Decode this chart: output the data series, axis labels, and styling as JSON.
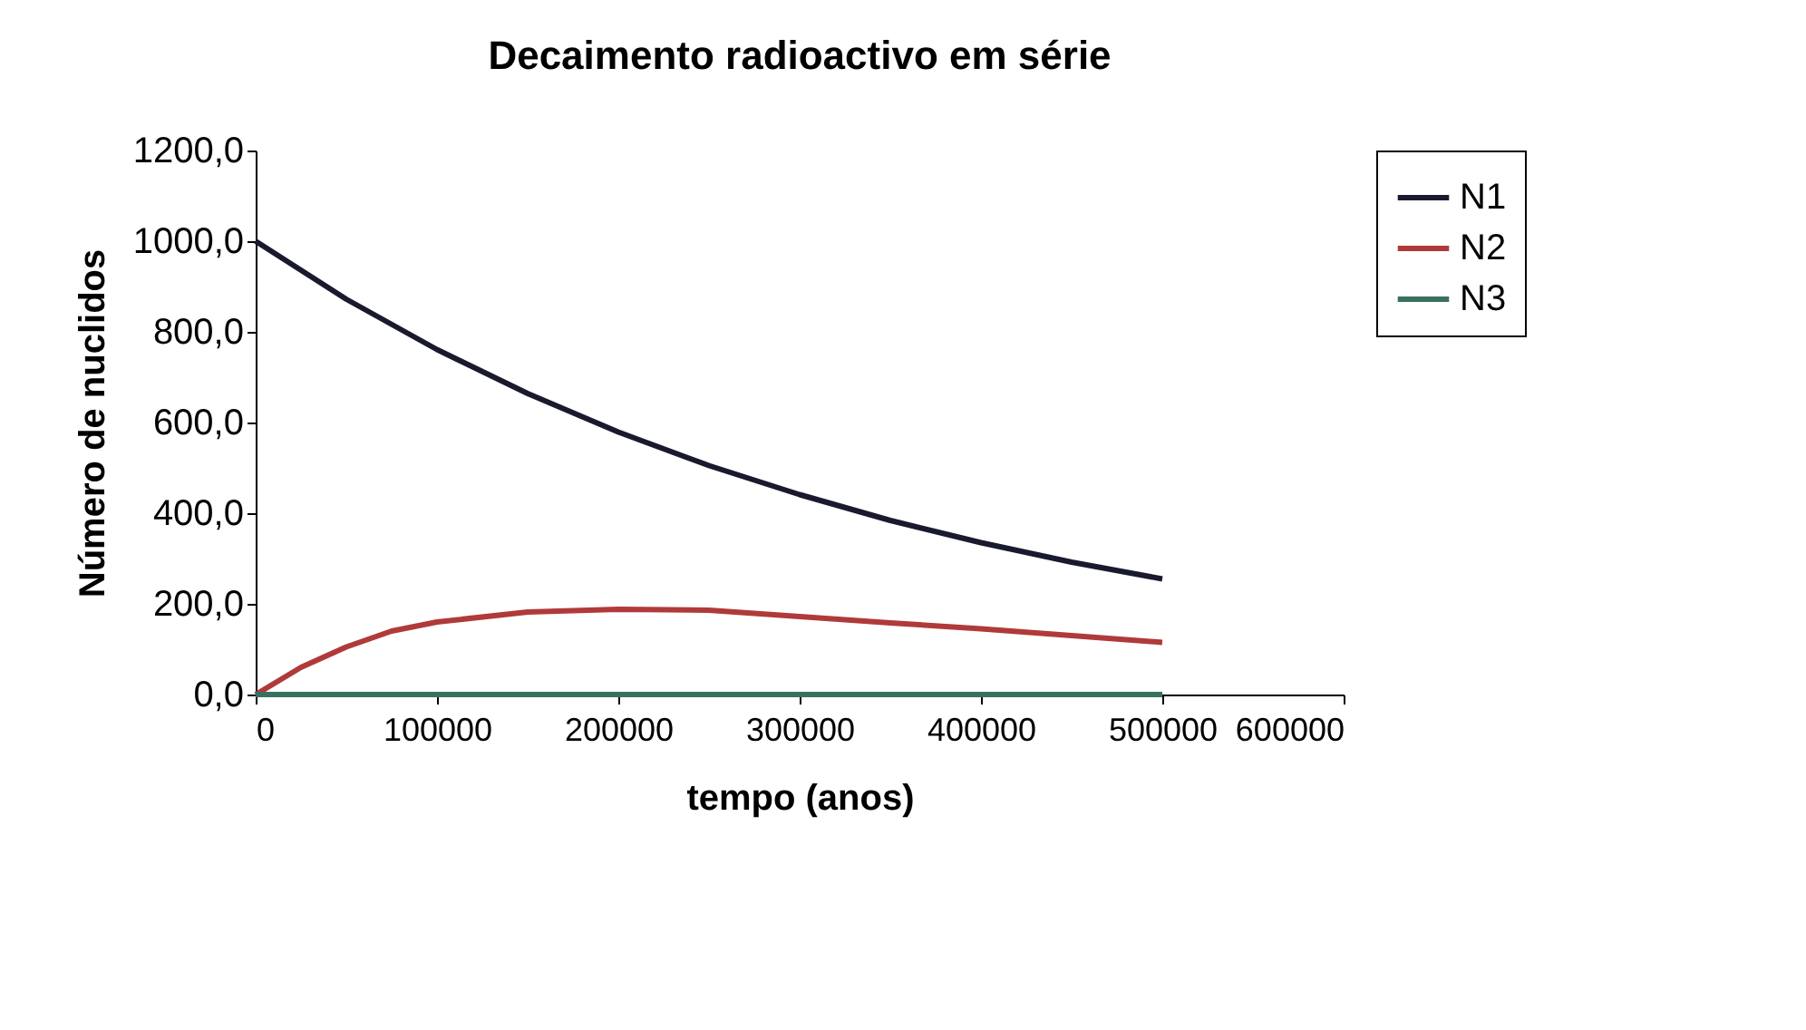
{
  "chart_data": {
    "type": "line",
    "title": "Decaimento radioactivo em série",
    "xlabel": "tempo (anos)",
    "ylabel": "Número de nuclidos",
    "xlim": [
      0,
      600000
    ],
    "xticks": [
      0,
      100000,
      200000,
      300000,
      400000,
      500000,
      600000
    ],
    "ylim": [
      0,
      1200
    ],
    "yticks": [
      {
        "value": 0,
        "label": "0,0"
      },
      {
        "value": 200,
        "label": "200,0"
      },
      {
        "value": 400,
        "label": "400,0"
      },
      {
        "value": 600,
        "label": "600,0"
      },
      {
        "value": 800,
        "label": "800,0"
      },
      {
        "value": 1000,
        "label": "1000,0"
      },
      {
        "value": 1200,
        "label": "1200,0"
      }
    ],
    "grid": false,
    "legend": "right",
    "marker": "none",
    "line_style": "solid",
    "series": [
      {
        "name": "N1",
        "color": "#1a1a2e",
        "x": [
          0,
          50000,
          100000,
          150000,
          200000,
          250000,
          300000,
          350000,
          400000,
          450000,
          500000
        ],
        "values": [
          1000,
          872,
          761,
          664,
          579,
          505,
          441,
          384,
          335,
          292,
          255
        ]
      },
      {
        "name": "N2",
        "color": "#b03a3a",
        "x": [
          0,
          25000,
          50000,
          75000,
          100000,
          150000,
          200000,
          250000,
          300000,
          350000,
          400000,
          450000,
          500000
        ],
        "values": [
          0,
          60,
          105,
          140,
          160,
          182,
          188,
          186,
          172,
          158,
          145,
          130,
          115
        ]
      },
      {
        "name": "N3",
        "color": "#3a7060",
        "x": [
          0,
          100000,
          200000,
          300000,
          400000,
          500000
        ],
        "values": [
          0,
          0,
          0,
          0,
          0,
          0
        ]
      }
    ]
  }
}
